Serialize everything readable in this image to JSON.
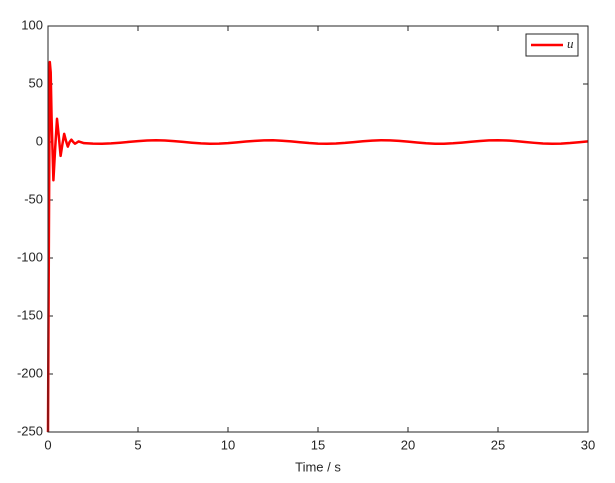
{
  "chart_data": {
    "type": "line",
    "xlabel": "Time / s",
    "x": [
      0,
      0.05,
      0.1,
      0.15,
      0.2,
      0.3,
      0.4,
      0.5,
      0.6,
      0.7,
      0.8,
      0.9,
      1.0,
      1.1,
      1.2,
      1.3,
      1.4,
      1.5,
      1.7,
      2.0,
      2.5,
      3.0,
      3.5,
      4.0,
      4.5,
      5.0,
      5.5,
      6.0,
      6.5,
      7.0,
      7.5,
      8.0,
      8.5,
      9.0,
      9.5,
      10,
      10.5,
      11,
      11.5,
      12,
      12.5,
      13,
      13.5,
      14,
      14.5,
      15,
      15.5,
      16,
      16.5,
      17,
      17.5,
      18,
      18.5,
      19,
      19.5,
      20,
      20.5,
      21,
      21.5,
      22,
      22.5,
      23,
      23.5,
      24,
      24.5,
      25,
      25.5,
      26,
      26.5,
      27,
      27.5,
      28,
      28.5,
      29,
      29.5,
      30
    ],
    "series": [
      {
        "name": "u",
        "color": "#ff0000",
        "values": [
          -250,
          -80,
          69,
          60,
          20,
          -33,
          -5,
          20,
          5,
          -12,
          -2,
          7,
          1,
          -4,
          0,
          2,
          0,
          -1.5,
          0.5,
          -1,
          -1.4,
          -1.5,
          -1.2,
          -0.6,
          0.1,
          0.8,
          1.3,
          1.5,
          1.3,
          0.8,
          0.1,
          -0.6,
          -1.2,
          -1.5,
          -1.4,
          -1.0,
          -0.3,
          0.4,
          1.0,
          1.4,
          1.5,
          1.1,
          0.5,
          -0.2,
          -0.9,
          -1.4,
          -1.5,
          -1.3,
          -0.8,
          -0.1,
          0.6,
          1.2,
          1.5,
          1.4,
          1.0,
          0.3,
          -0.4,
          -1.1,
          -1.5,
          -1.5,
          -1.1,
          -0.5,
          0.2,
          0.9,
          1.4,
          1.5,
          1.3,
          0.8,
          0.0,
          -0.7,
          -1.3,
          -1.5,
          -1.4,
          -0.9,
          -0.2,
          0.5
        ]
      }
    ],
    "xlim": [
      0,
      30
    ],
    "xticks": [
      0,
      5,
      10,
      15,
      20,
      25,
      30
    ],
    "ylim": [
      -250,
      100
    ],
    "yticks": [
      -250,
      -200,
      -150,
      -100,
      -50,
      0,
      50,
      100
    ],
    "legend": "upper right",
    "grid": false
  }
}
